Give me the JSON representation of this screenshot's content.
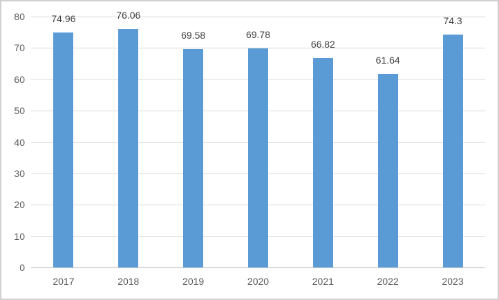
{
  "chart_data": {
    "type": "bar",
    "title": "",
    "xlabel": "",
    "ylabel": "",
    "categories": [
      "2017",
      "2018",
      "2019",
      "2020",
      "2021",
      "2022",
      "2023"
    ],
    "values": [
      74.96,
      76.06,
      69.58,
      69.78,
      66.82,
      61.64,
      74.3
    ],
    "data_labels": [
      "74.96",
      "76.06",
      "69.58",
      "69.78",
      "66.82",
      "61.64",
      "74.3"
    ],
    "yticks": [
      0,
      10,
      20,
      30,
      40,
      50,
      60,
      70,
      80
    ],
    "ytick_labels": [
      "0",
      "10",
      "20",
      "30",
      "40",
      "50",
      "60",
      "70",
      "80"
    ],
    "ylim": [
      0,
      80
    ],
    "grid": "horizontal",
    "legend": "none",
    "colors": {
      "bar_fill": "#5b9bd5",
      "gridline": "#d9d9d9",
      "axis_line": "#d9d9d9",
      "axis_label_text": "#595959",
      "data_label_text": "#404040",
      "chart_border": "#d0cece",
      "background": "#ffffff"
    }
  }
}
